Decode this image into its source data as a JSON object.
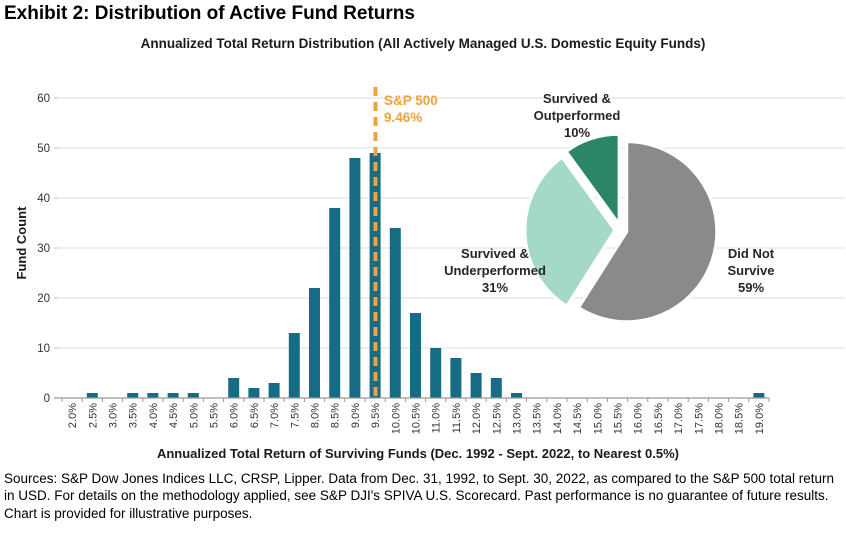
{
  "page": {
    "exhibit_title": "Exhibit 2: Distribution of Active Fund Returns",
    "footnote": "Sources: S&P Dow Jones Indices LLC, CRSP, Lipper. Data from Dec. 31, 1992, to Sept. 30, 2022, as compared to the S&P 500 total return in USD. For details on the methodology applied, see S&P DJI's SPIVA U.S. Scorecard. Past performance is no guarantee of future results. Chart is provided for illustrative purposes."
  },
  "chart_data": [
    {
      "type": "bar",
      "title": "Annualized Total Return Distribution (All Actively Managed U.S. Domestic Equity Funds)",
      "xlabel": "Annualized Total Return of Surviving Funds (Dec. 1992 - Sept. 2022, to Nearest 0.5%)",
      "ylabel": "Fund Count",
      "categories": [
        "2.0%",
        "2.5%",
        "3.0%",
        "3.5%",
        "4.0%",
        "4.5%",
        "5.0%",
        "5.5%",
        "6.0%",
        "6.5%",
        "7.0%",
        "7.5%",
        "8.0%",
        "8.5%",
        "9.0%",
        "9.5%",
        "10.0%",
        "10.5%",
        "11.0%",
        "11.5%",
        "12.0%",
        "12.5%",
        "13.0%",
        "13.5%",
        "14.0%",
        "14.5%",
        "15.0%",
        "15.5%",
        "16.0%",
        "16.5%",
        "17.0%",
        "17.5%",
        "18.0%",
        "18.5%",
        "19.0%"
      ],
      "values": [
        0,
        1,
        0,
        1,
        1,
        1,
        1,
        0,
        4,
        2,
        3,
        13,
        22,
        38,
        48,
        49,
        34,
        17,
        10,
        8,
        5,
        4,
        1,
        0,
        0,
        0,
        0,
        0,
        0,
        0,
        0,
        0,
        0,
        0,
        1
      ],
      "ylim": [
        0,
        60
      ],
      "yticks": [
        0,
        10,
        20,
        30,
        40,
        50,
        60
      ],
      "grid": true,
      "legend_position": "none",
      "bar_color": "#166C84",
      "reference_line": {
        "value": 9.46,
        "label": "S&P 500\n9.46%",
        "color": "#F0A23E"
      }
    },
    {
      "type": "pie",
      "start_angle_deg": 0,
      "direction": "clockwise",
      "slices": [
        {
          "name": "Did Not Survive",
          "value": 59,
          "color": "#8A8A8A",
          "label": "Did Not\nSurvive\n59%"
        },
        {
          "name": "Survived & Underperformed",
          "value": 31,
          "color": "#A3D9C6",
          "label": "Survived &\nUnderperformed\n31%"
        },
        {
          "name": "Survived & Outperformed",
          "value": 10,
          "color": "#2B8569",
          "label": "Survived &\nOutperformed\n10%"
        }
      ]
    }
  ]
}
